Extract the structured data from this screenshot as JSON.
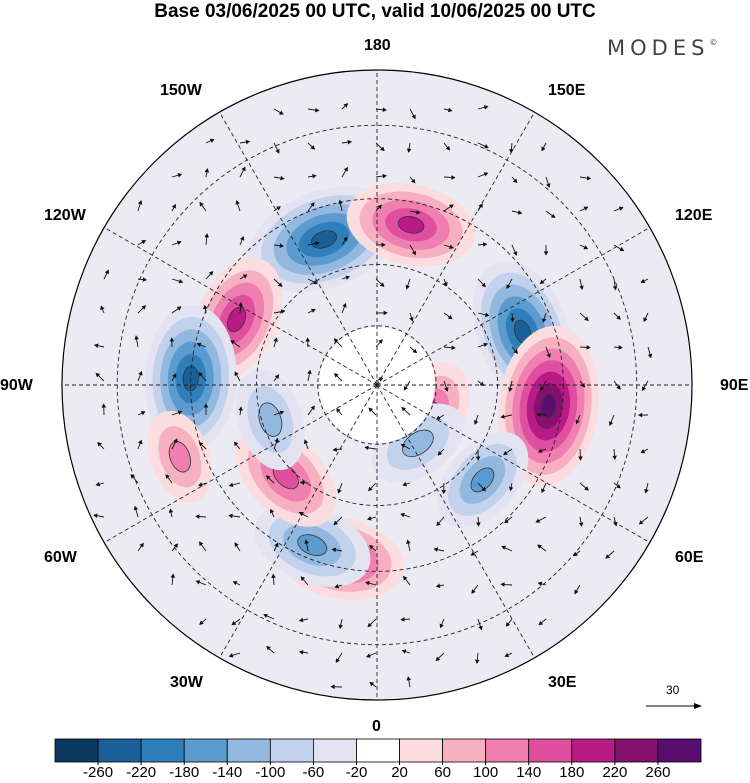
{
  "title": "Base 03/06/2025 00 UTC, valid 10/06/2025 00 UTC",
  "brand": "MODES",
  "brand_mark": "©",
  "longitude_labels": {
    "n180": "180",
    "e150": "150E",
    "e120": "120E",
    "e90": "90E",
    "e60": "60E",
    "e30": "30E",
    "s0": "0",
    "w30": "30W",
    "w60": "60W",
    "w90": "90W",
    "w120": "120W",
    "w150": "150W"
  },
  "reference_vector": {
    "value": "30"
  },
  "colorbar": {
    "ticks": [
      "-260",
      "-220",
      "-180",
      "-140",
      "-100",
      "-60",
      "-20",
      "20",
      "60",
      "100",
      "140",
      "180",
      "220",
      "260"
    ],
    "colors": [
      "#0c3a63",
      "#1b5f98",
      "#2f7fbd",
      "#5b9bd0",
      "#93b8e0",
      "#c3d2ec",
      "#e4e3f2",
      "#ffffff",
      "#fbdde0",
      "#f6b0c0",
      "#ee7fb0",
      "#e04f9f",
      "#b81a86",
      "#85116f",
      "#5a0f6e"
    ]
  },
  "map_data": {
    "projection": "north-polar-stereographic",
    "field": "500 hPa geopotential height anomaly with wind vectors",
    "anomalies": [
      {
        "lon": -160,
        "lat": 52,
        "value": -220
      },
      {
        "lon": 168,
        "lat": 50,
        "value": 160
      },
      {
        "lon": -115,
        "lat": 52,
        "value": 160
      },
      {
        "lon": -92,
        "lat": 45,
        "value": -200
      },
      {
        "lon": 110,
        "lat": 52,
        "value": -200
      },
      {
        "lon": 83,
        "lat": 48,
        "value": 230
      },
      {
        "lon": 48,
        "lat": 55,
        "value": -120
      },
      {
        "lon": 60,
        "lat": 75,
        "value": 120
      },
      {
        "lon": 35,
        "lat": 72,
        "value": -100
      },
      {
        "lon": -12,
        "lat": 47,
        "value": 160
      },
      {
        "lon": -22,
        "lat": 48,
        "value": -140
      },
      {
        "lon": -45,
        "lat": 58,
        "value": 140
      },
      {
        "lon": -72,
        "lat": 62,
        "value": -100
      },
      {
        "lon": -70,
        "lat": 40,
        "value": 80
      }
    ]
  }
}
